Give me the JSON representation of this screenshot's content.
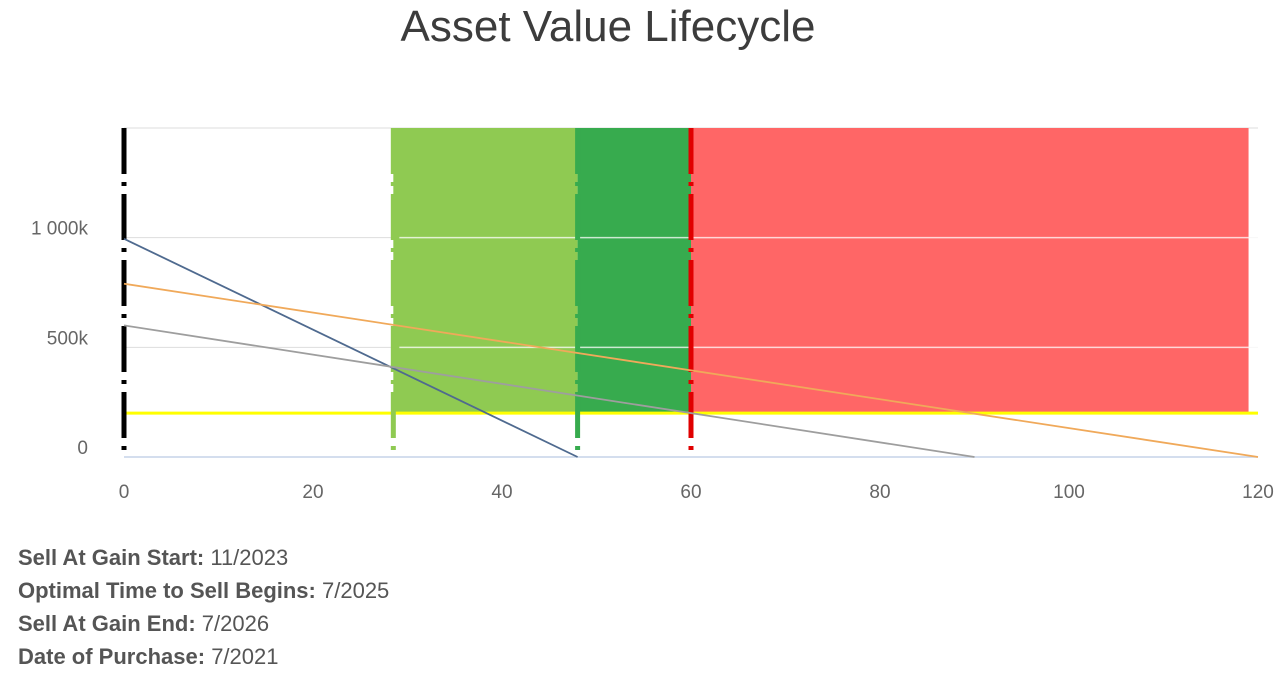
{
  "chart_data": {
    "type": "line",
    "title": "Asset Value Lifecycle",
    "xlim": [
      0,
      120
    ],
    "ylim": [
      0,
      1500000
    ],
    "x_ticks": [
      0,
      20,
      40,
      60,
      80,
      100,
      120
    ],
    "x_tick_labels": [
      "0",
      "20",
      "40",
      "60",
      "80",
      "100",
      "120"
    ],
    "y_ticks": [
      0,
      500000,
      1000000
    ],
    "y_tick_labels": [
      "0",
      "500k",
      "1 000k"
    ],
    "grid": true,
    "bands": [
      {
        "x_start": 28.5,
        "x_end": 48,
        "color": "#8fca52"
      },
      {
        "x_start": 48,
        "x_end": 60,
        "color": "#37ab4e"
      },
      {
        "x_start": 60,
        "x_end": 119,
        "color": "#ff6666"
      }
    ],
    "vertical_markers": [
      {
        "x": 0,
        "color": "#000000"
      },
      {
        "x": 28.5,
        "color": "#8fca52"
      },
      {
        "x": 48,
        "color": "#37ab4e"
      },
      {
        "x": 60,
        "color": "#e00000"
      }
    ],
    "threshold": {
      "y": 200000,
      "color": "#ffff00"
    },
    "series": [
      {
        "color": "#4f6a8f",
        "x": [
          0,
          48
        ],
        "y": [
          995000,
          0
        ]
      },
      {
        "color": "#f0a95a",
        "x": [
          0,
          120
        ],
        "y": [
          790000,
          0
        ]
      },
      {
        "color": "#9e9e9e",
        "x": [
          0,
          90
        ],
        "y": [
          600000,
          0
        ]
      }
    ]
  },
  "info": [
    {
      "label": "Sell At Gain Start:",
      "value": "11/2023"
    },
    {
      "label": "Optimal Time to Sell Begins:",
      "value": "7/2025"
    },
    {
      "label": "Sell At Gain End:",
      "value": "7/2026"
    },
    {
      "label": "Date of Purchase:",
      "value": "7/2021"
    }
  ]
}
